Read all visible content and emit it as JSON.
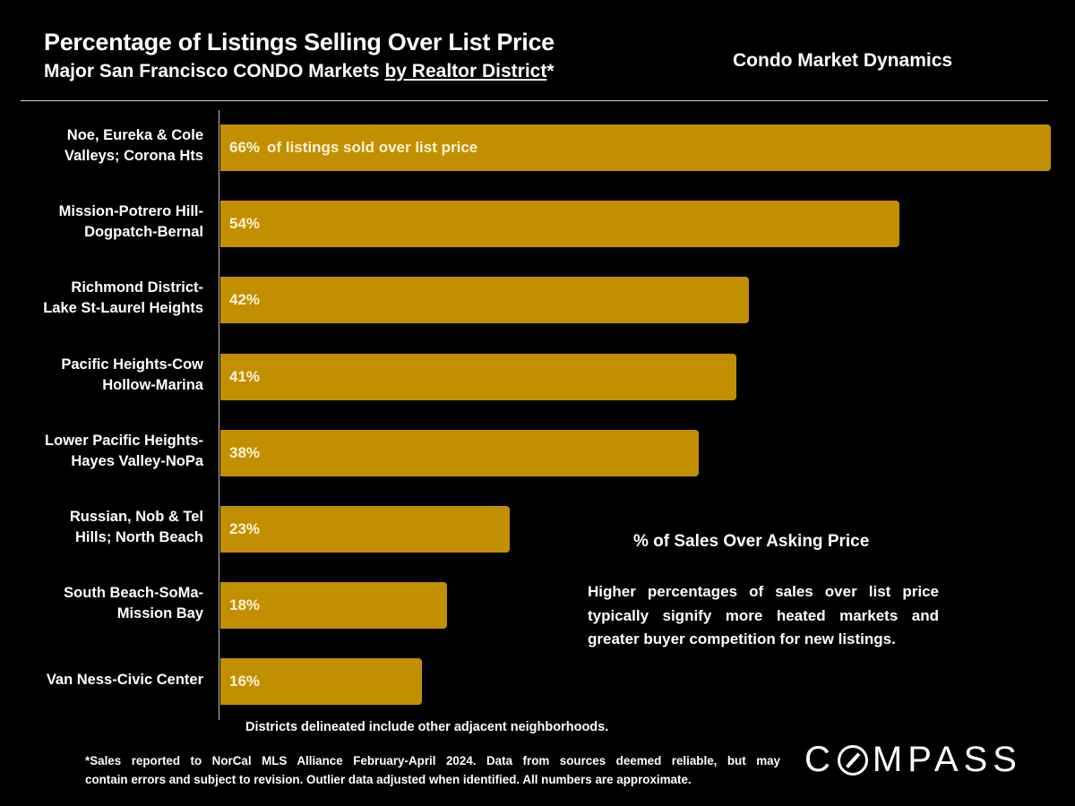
{
  "header": {
    "title": "Percentage of Listings Selling Over List Price",
    "subtitle_prefix": "Major San Francisco CONDO Markets ",
    "subtitle_underlined": "by Realtor District",
    "subtitle_suffix": "*",
    "side_title": "Condo Market Dynamics"
  },
  "colors": {
    "background": "#000000",
    "bar": "#c28f00",
    "text": "#ffffff"
  },
  "chart_data": {
    "type": "bar",
    "orientation": "horizontal",
    "title": "Percentage of Listings Selling Over List Price",
    "xlabel": "",
    "ylabel": "",
    "xlim": [
      0,
      66
    ],
    "grid": false,
    "categories": [
      "Noe, Eureka & Cole Valleys; Corona Hts",
      "Mission-Potrero Hill-Dogpatch-Bernal",
      "Richmond District-Lake St-Laurel Heights",
      "Pacific Heights-Cow Hollow-Marina",
      "Lower Pacific Heights-Hayes Valley-NoPa",
      "Russian, Nob & Tel Hills; North Beach",
      "South Beach-SoMa-Mission Bay",
      "Van Ness-Civic Center"
    ],
    "category_lines": [
      [
        "Noe, Eureka & Cole",
        "Valleys; Corona Hts"
      ],
      [
        "Mission-Potrero Hill-",
        "Dogpatch-Bernal"
      ],
      [
        "Richmond District-",
        "Lake St-Laurel Heights"
      ],
      [
        "Pacific Heights-Cow",
        "Hollow-Marina"
      ],
      [
        "Lower Pacific Heights-",
        "Hayes Valley-NoPa"
      ],
      [
        "Russian, Nob & Tel",
        "Hills; North Beach"
      ],
      [
        "South Beach-SoMa-",
        "Mission Bay"
      ],
      [
        "Van Ness-Civic Center"
      ]
    ],
    "values": [
      66,
      54,
      42,
      41,
      38,
      23,
      18,
      16
    ],
    "data_labels": [
      "66%",
      "54%",
      "42%",
      "41%",
      "38%",
      "23%",
      "18%",
      "16%"
    ],
    "first_label_suffix": "of listings sold over list price"
  },
  "annotation": {
    "title": "% of Sales Over Asking Price",
    "body_lines": [
      "Higher percentages of sales over list price",
      "typically signify more heated markets and",
      "greater buyer competition for new listings."
    ]
  },
  "adjacent_note": "Districts delineated include other adjacent neighborhoods.",
  "footnote_lines": [
    "*Sales reported to NorCal MLS Alliance February-April 2024. Data from sources deemed reliable, but may",
    "contain errors and subject to revision. Outlier data adjusted when identified. All numbers are approximate."
  ],
  "logo": {
    "prefix": "C",
    "suffix": "MPASS"
  }
}
